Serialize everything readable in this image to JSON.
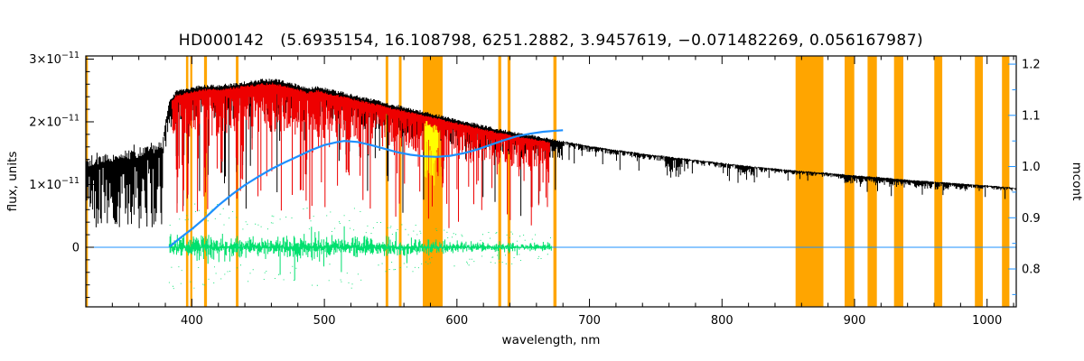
{
  "chart_data": {
    "type": "line",
    "title": "HD000142   (5.6935154, 16.108798, 6251.2882, 3.9457619, −0.071482269, 0.056167987)",
    "xlabel": "wavelength, nm",
    "ylabel_left": "flux, units",
    "ylabel_right": "mcont",
    "flux_unit_scale": "1e-11",
    "x_range": [
      320,
      1022
    ],
    "y_left_range": [
      -0.95,
      3.05
    ],
    "y_right_range": [
      0.726,
      1.216
    ],
    "x_ticks": [
      400,
      500,
      600,
      700,
      800,
      900,
      1000
    ],
    "x_tick_labels": [
      "400",
      "500",
      "600",
      "700",
      "800",
      "900",
      "1000"
    ],
    "x_minor_step": 20,
    "y_left_ticks": [
      {
        "value": 0,
        "mantissa": "0",
        "exponent": ""
      },
      {
        "value": 1,
        "mantissa": "1×10",
        "exponent": "−11"
      },
      {
        "value": 2,
        "mantissa": "2×10",
        "exponent": "−11"
      },
      {
        "value": 3,
        "mantissa": "3×10",
        "exponent": "−11"
      }
    ],
    "y_left_minor_step": 0.2,
    "y_right_ticks": [
      {
        "value": 0.8,
        "label": "0.8"
      },
      {
        "value": 0.9,
        "label": "0.9"
      },
      {
        "value": 1.0,
        "label": "1.0"
      },
      {
        "value": 1.1,
        "label": "1.1"
      },
      {
        "value": 1.2,
        "label": "1.2"
      }
    ],
    "colors": {
      "masked_region": "#FFA500",
      "observed": "#000000",
      "synthetic": "#EE0000",
      "residual": "#00E06E",
      "continuum": "#1E90FF",
      "line_mask": "#FFFF00",
      "frame": "#000000"
    },
    "masked_regions": [
      [
        320,
        321.6
      ],
      [
        395.6,
        397.4
      ],
      [
        398.8,
        400.4
      ],
      [
        409.2,
        411.4
      ],
      [
        433.2,
        435.2
      ],
      [
        546.2,
        548.2
      ],
      [
        556.2,
        558.2
      ],
      [
        574.2,
        589.2
      ],
      [
        631.2,
        633.4
      ],
      [
        638.2,
        640.4
      ],
      [
        672.8,
        675.2
      ],
      [
        855.5,
        876.5
      ],
      [
        892.5,
        899.8
      ],
      [
        909.8,
        916.8
      ],
      [
        929.8,
        936.8
      ],
      [
        960.2,
        966.2
      ],
      [
        990.8,
        996.8
      ],
      [
        1011.2,
        1016.8
      ]
    ],
    "line_mask_regions": [
      [
        575.8,
        586.2
      ]
    ],
    "series": {
      "flux_envelope": [
        [
          320,
          1.42
        ],
        [
          330,
          1.47
        ],
        [
          340,
          1.5
        ],
        [
          350,
          1.54
        ],
        [
          360,
          1.58
        ],
        [
          370,
          1.63
        ],
        [
          378,
          1.68
        ],
        [
          380,
          2.0
        ],
        [
          383,
          2.35
        ],
        [
          388,
          2.5
        ],
        [
          395,
          2.54
        ],
        [
          400,
          2.56
        ],
        [
          410,
          2.6
        ],
        [
          420,
          2.6
        ],
        [
          430,
          2.62
        ],
        [
          440,
          2.65
        ],
        [
          450,
          2.68
        ],
        [
          460,
          2.7
        ],
        [
          470,
          2.66
        ],
        [
          480,
          2.6
        ],
        [
          487,
          2.55
        ],
        [
          495,
          2.58
        ],
        [
          500,
          2.55
        ],
        [
          510,
          2.5
        ],
        [
          520,
          2.45
        ],
        [
          530,
          2.4
        ],
        [
          540,
          2.35
        ],
        [
          550,
          2.3
        ],
        [
          560,
          2.25
        ],
        [
          570,
          2.2
        ],
        [
          580,
          2.15
        ],
        [
          590,
          2.1
        ],
        [
          600,
          2.05
        ],
        [
          610,
          2.0
        ],
        [
          620,
          1.95
        ],
        [
          630,
          1.9
        ],
        [
          640,
          1.86
        ],
        [
          650,
          1.82
        ],
        [
          660,
          1.78
        ],
        [
          670,
          1.74
        ],
        [
          680,
          1.7
        ],
        [
          700,
          1.62
        ],
        [
          720,
          1.56
        ],
        [
          740,
          1.5
        ],
        [
          760,
          1.45
        ],
        [
          780,
          1.4
        ],
        [
          800,
          1.35
        ],
        [
          820,
          1.3
        ],
        [
          840,
          1.26
        ],
        [
          860,
          1.22
        ],
        [
          880,
          1.19
        ],
        [
          900,
          1.15
        ],
        [
          920,
          1.12
        ],
        [
          940,
          1.08
        ],
        [
          960,
          1.05
        ],
        [
          980,
          1.02
        ],
        [
          1000,
          0.99
        ],
        [
          1022,
          0.95
        ]
      ],
      "residual_amplitude": [
        [
          383,
          0.3
        ],
        [
          400,
          0.33
        ],
        [
          415,
          0.34
        ],
        [
          430,
          0.28
        ],
        [
          445,
          0.24
        ],
        [
          460,
          0.23
        ],
        [
          475,
          0.26
        ],
        [
          490,
          0.3
        ],
        [
          505,
          0.28
        ],
        [
          520,
          0.3
        ],
        [
          535,
          0.25
        ],
        [
          550,
          0.2
        ],
        [
          565,
          0.18
        ],
        [
          580,
          0.16
        ],
        [
          595,
          0.15
        ],
        [
          610,
          0.13
        ],
        [
          625,
          0.12
        ],
        [
          640,
          0.12
        ],
        [
          655,
          0.11
        ],
        [
          672,
          0.1
        ]
      ],
      "mcont": [
        [
          383,
          0.843
        ],
        [
          390,
          0.858
        ],
        [
          400,
          0.878
        ],
        [
          410,
          0.9
        ],
        [
          420,
          0.924
        ],
        [
          430,
          0.945
        ],
        [
          440,
          0.964
        ],
        [
          450,
          0.98
        ],
        [
          460,
          0.995
        ],
        [
          470,
          1.008
        ],
        [
          480,
          1.02
        ],
        [
          490,
          1.032
        ],
        [
          500,
          1.042
        ],
        [
          510,
          1.048
        ],
        [
          515,
          1.05
        ],
        [
          525,
          1.048
        ],
        [
          535,
          1.042
        ],
        [
          545,
          1.035
        ],
        [
          555,
          1.028
        ],
        [
          565,
          1.023
        ],
        [
          575,
          1.02
        ],
        [
          585,
          1.019
        ],
        [
          595,
          1.021
        ],
        [
          605,
          1.026
        ],
        [
          615,
          1.033
        ],
        [
          625,
          1.042
        ],
        [
          635,
          1.051
        ],
        [
          645,
          1.059
        ],
        [
          655,
          1.064
        ],
        [
          665,
          1.068
        ],
        [
          675,
          1.07
        ],
        [
          680,
          1.071
        ]
      ],
      "absorption_lines": [
        {
          "nm": 388.9,
          "depth": 0.8
        },
        {
          "nm": 393.4,
          "depth": 0.85
        },
        {
          "nm": 396.8,
          "depth": 0.82
        },
        {
          "nm": 404.6,
          "depth": 0.5
        },
        {
          "nm": 410.2,
          "depth": 0.7
        },
        {
          "nm": 422.7,
          "depth": 0.55
        },
        {
          "nm": 434.0,
          "depth": 0.72
        },
        {
          "nm": 438.4,
          "depth": 0.6
        },
        {
          "nm": 445.5,
          "depth": 0.4
        },
        {
          "nm": 486.1,
          "depth": 0.75
        },
        {
          "nm": 495.7,
          "depth": 0.4
        },
        {
          "nm": 516.7,
          "depth": 0.6
        },
        {
          "nm": 518.4,
          "depth": 0.62
        },
        {
          "nm": 527.0,
          "depth": 0.55
        },
        {
          "nm": 532.8,
          "depth": 0.4
        },
        {
          "nm": 552.8,
          "depth": 0.35
        },
        {
          "nm": 589.0,
          "depth": 0.55
        },
        {
          "nm": 589.6,
          "depth": 0.5
        },
        {
          "nm": 610.3,
          "depth": 0.35
        },
        {
          "nm": 612.2,
          "depth": 0.3
        },
        {
          "nm": 630.2,
          "depth": 0.3
        },
        {
          "nm": 656.3,
          "depth": 0.85
        }
      ]
    }
  }
}
